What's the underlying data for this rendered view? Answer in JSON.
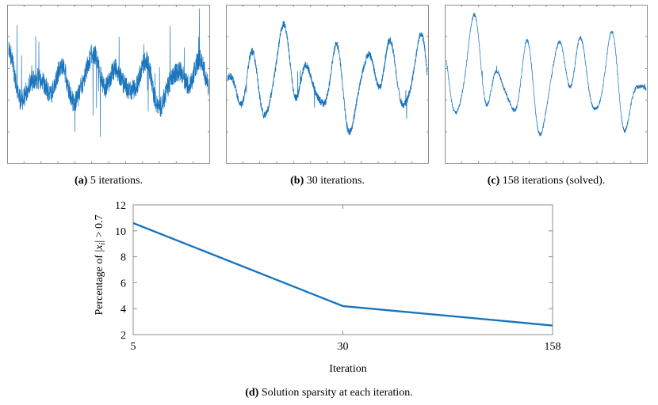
{
  "colors": {
    "series": "#1a75bc",
    "axis": "#8c8c8c",
    "text": "#000000"
  },
  "panels": [
    {
      "letter": "(a)",
      "caption": "5 iterations.",
      "iterations": 5
    },
    {
      "letter": "(b)",
      "caption": "30 iterations.",
      "iterations": 30
    },
    {
      "letter": "(c)",
      "caption": "158 iterations (solved).",
      "iterations": 158
    }
  ],
  "chart_data": [
    {
      "type": "line",
      "title": "(a) 5 iterations.",
      "xlabel": "",
      "ylabel": "",
      "note": "dense signal trace, no tick labels"
    },
    {
      "type": "line",
      "title": "(b) 30 iterations.",
      "xlabel": "",
      "ylabel": "",
      "note": "dense signal trace, no tick labels"
    },
    {
      "type": "line",
      "title": "(c) 158 iterations (solved).",
      "xlabel": "",
      "ylabel": "",
      "note": "dense signal trace, no tick labels"
    },
    {
      "type": "line",
      "title": "Solution sparsity at each iteration.",
      "caption_letter": "(d)",
      "xlabel": "Iteration",
      "ylabel": "Percentage of |x_i| > 0.7",
      "ylabel_parts": {
        "prefix": "Percentage of |",
        "var": "x",
        "sub": "i",
        "suffix": "| > 0.7"
      },
      "categories": [
        "5",
        "30",
        "158"
      ],
      "values": [
        10.6,
        4.2,
        2.7
      ],
      "ylim": [
        2,
        12
      ],
      "yticks": [
        2,
        4,
        6,
        8,
        10,
        12
      ],
      "yticklabels": [
        "2",
        "4",
        "6",
        "8",
        "10",
        "12"
      ]
    }
  ]
}
